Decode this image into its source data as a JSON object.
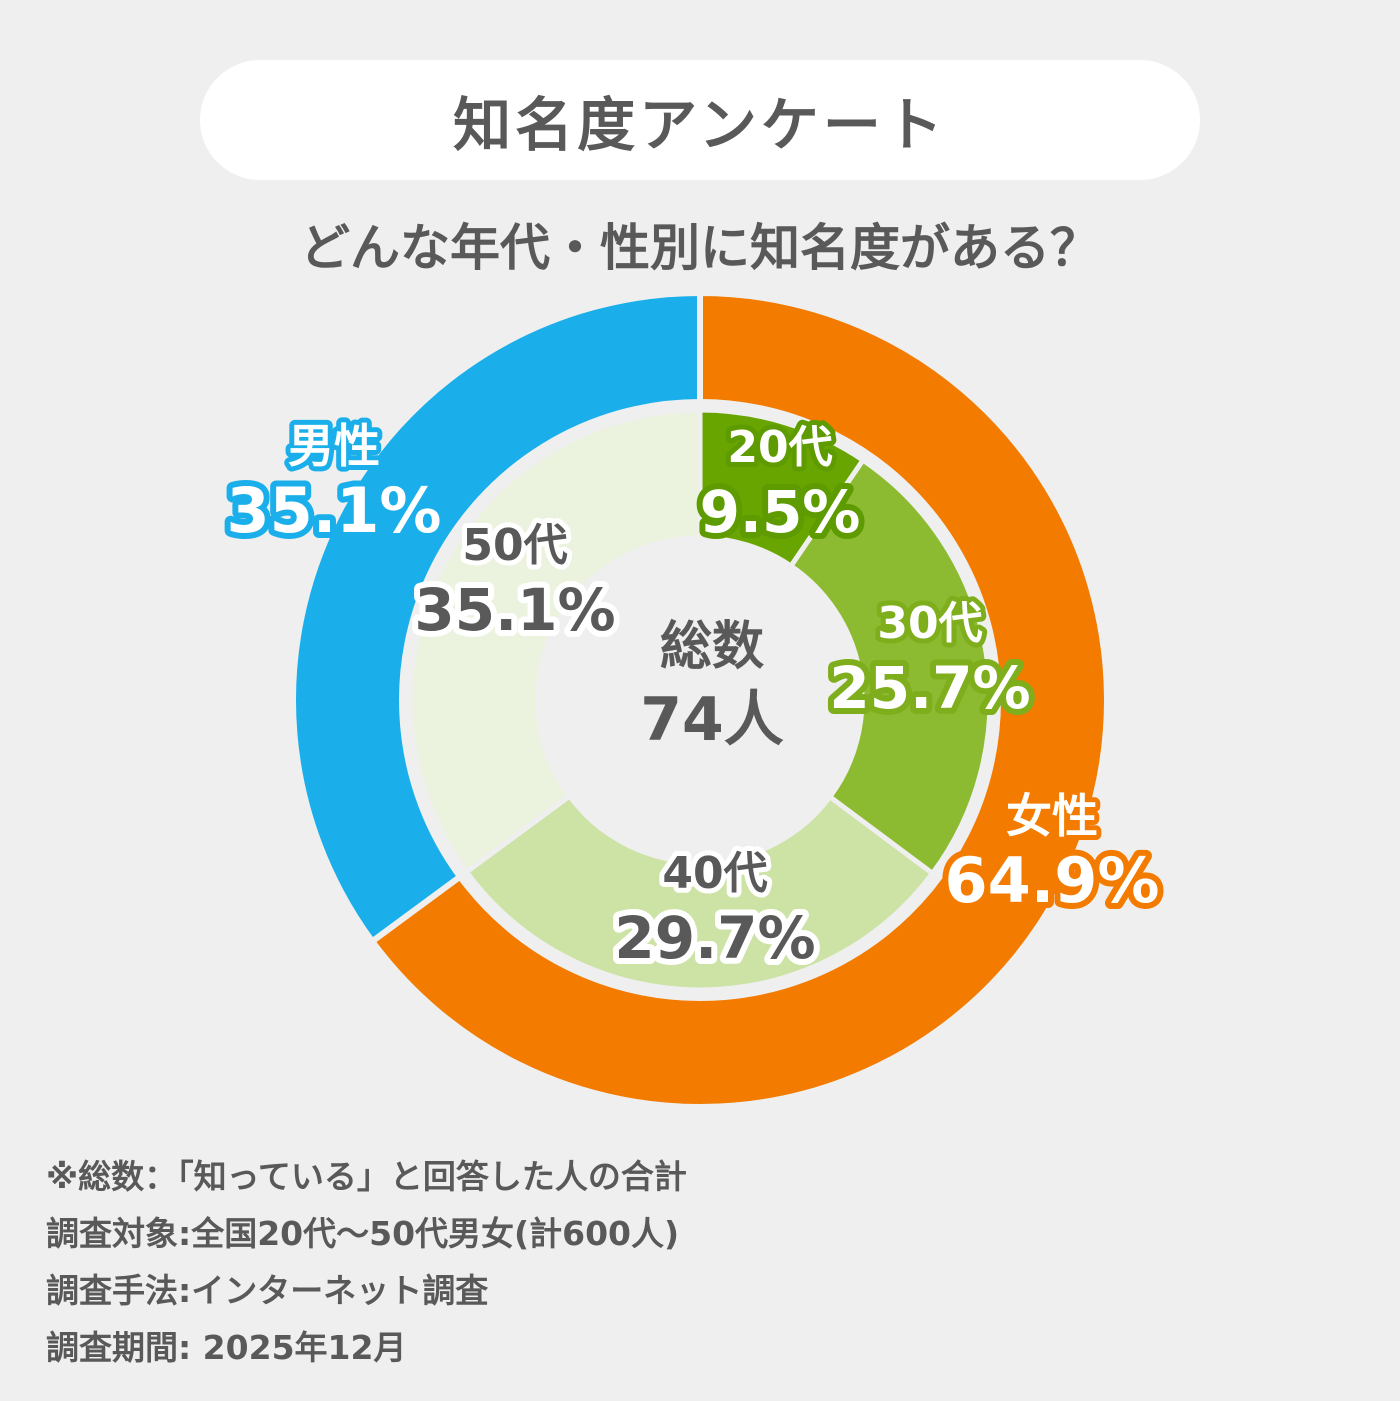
{
  "header": {
    "title": "知名度アンケート",
    "subtitle": "どんな年代・性別に知名度がある？"
  },
  "center": {
    "label": "総数",
    "value": "74人"
  },
  "chart_data": [
    {
      "type": "pie",
      "ring": "outer",
      "start": "12 o'clock, clockwise",
      "slices": [
        {
          "name": "女性",
          "value": 64.9,
          "label": "64.9%",
          "color": "#f27b00"
        },
        {
          "name": "男性",
          "value": 35.1,
          "label": "35.1%",
          "color": "#1aafeb"
        }
      ]
    },
    {
      "type": "pie",
      "ring": "inner",
      "start": "12 o'clock, clockwise",
      "slices": [
        {
          "name": "20代",
          "value": 9.5,
          "label": "9.5%",
          "color": "#69a500",
          "text_color": "#ffffff",
          "outline": "#5e9b00"
        },
        {
          "name": "30代",
          "value": 25.7,
          "label": "25.7%",
          "color": "#8cba31",
          "text_color": "#ffffff",
          "outline": "#7fae1c"
        },
        {
          "name": "40代",
          "value": 29.7,
          "label": "29.7%",
          "color": "#cde2a5",
          "text_color": "#595959",
          "outline": "#ffffff"
        },
        {
          "name": "50代",
          "value": 35.1,
          "label": "35.1%",
          "color": "#ebf3df",
          "text_color": "#595959",
          "outline": "#ffffff"
        }
      ]
    }
  ],
  "footnotes": [
    "※総数：「知っている」と回答した人の合計",
    "調査対象:全国20代～50代男女(計600人)",
    "調査手法:インターネット調査",
    "調査期間: 2025年12月"
  ]
}
